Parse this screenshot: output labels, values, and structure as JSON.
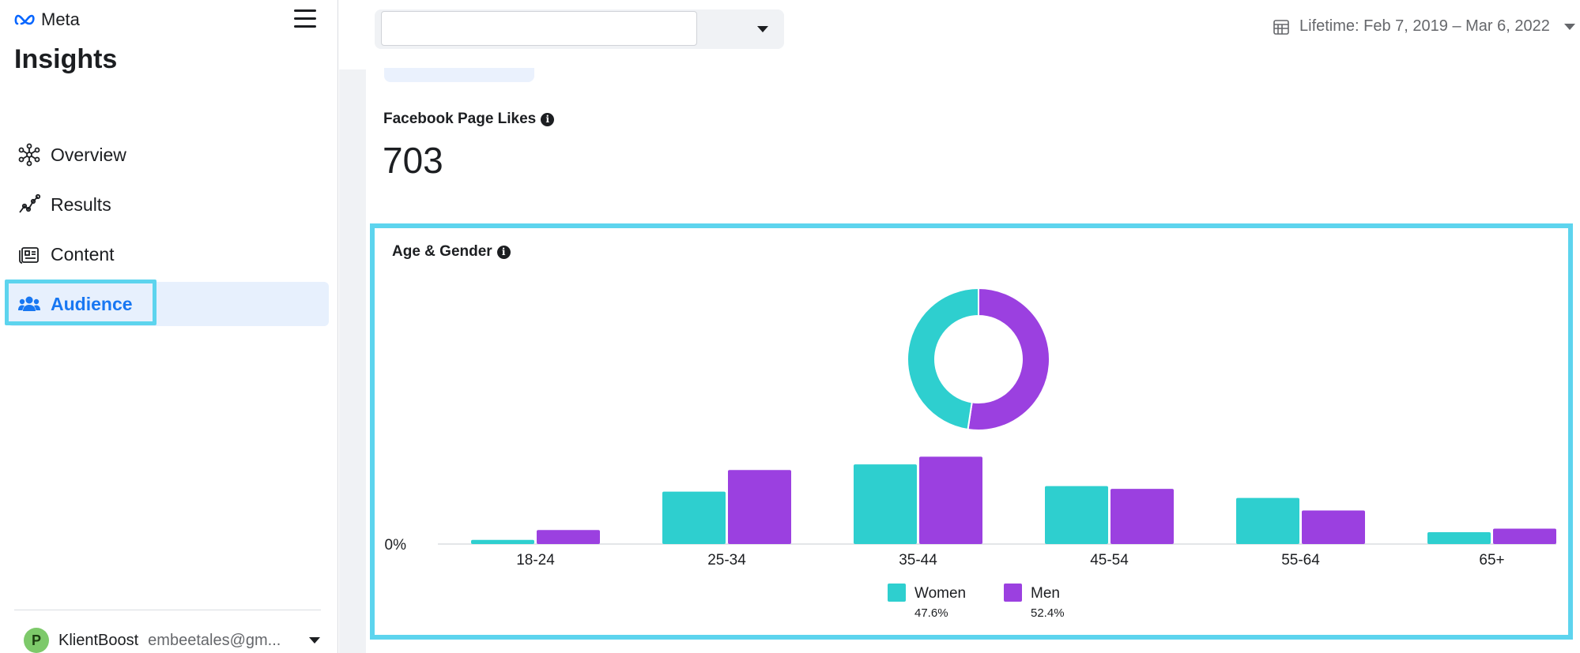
{
  "brand": {
    "logo_text": "Meta",
    "app_title": "Insights"
  },
  "nav": {
    "items": [
      {
        "label": "Overview",
        "icon": "overview-icon"
      },
      {
        "label": "Results",
        "icon": "results-icon"
      },
      {
        "label": "Content",
        "icon": "content-icon"
      },
      {
        "label": "Audience",
        "icon": "audience-icon",
        "active": true
      }
    ]
  },
  "account": {
    "avatar_letter": "P",
    "name": "KlientBoost",
    "email": "embeetales@gm..."
  },
  "topbar": {
    "page_select_value": "",
    "date_range": "Lifetime: Feb 7, 2019 – Mar 6, 2022"
  },
  "likes": {
    "label": "Facebook Page Likes",
    "value": "703"
  },
  "colors": {
    "women": "#2ecfcf",
    "men": "#9b40e0",
    "highlight": "#5dd4ee",
    "active_nav": "#1877f2"
  },
  "chart_data": {
    "type": "bar",
    "title": "Age & Gender",
    "categories": [
      "18-24",
      "25-34",
      "35-44",
      "45-54",
      "55-64",
      "65+"
    ],
    "series": [
      {
        "name": "Women",
        "share": "47.6%",
        "values": [
          0.6,
          7.5,
          11.4,
          8.3,
          6.6,
          1.7
        ]
      },
      {
        "name": "Men",
        "share": "52.4%",
        "values": [
          2.0,
          10.6,
          12.5,
          7.9,
          4.8,
          2.2
        ]
      }
    ],
    "donut": [
      {
        "name": "Women",
        "value": 47.6
      },
      {
        "name": "Men",
        "value": 52.4
      }
    ],
    "ylabel": "",
    "xlabel": "",
    "ylim": [
      0,
      13
    ],
    "y_tick_label": "0%"
  }
}
